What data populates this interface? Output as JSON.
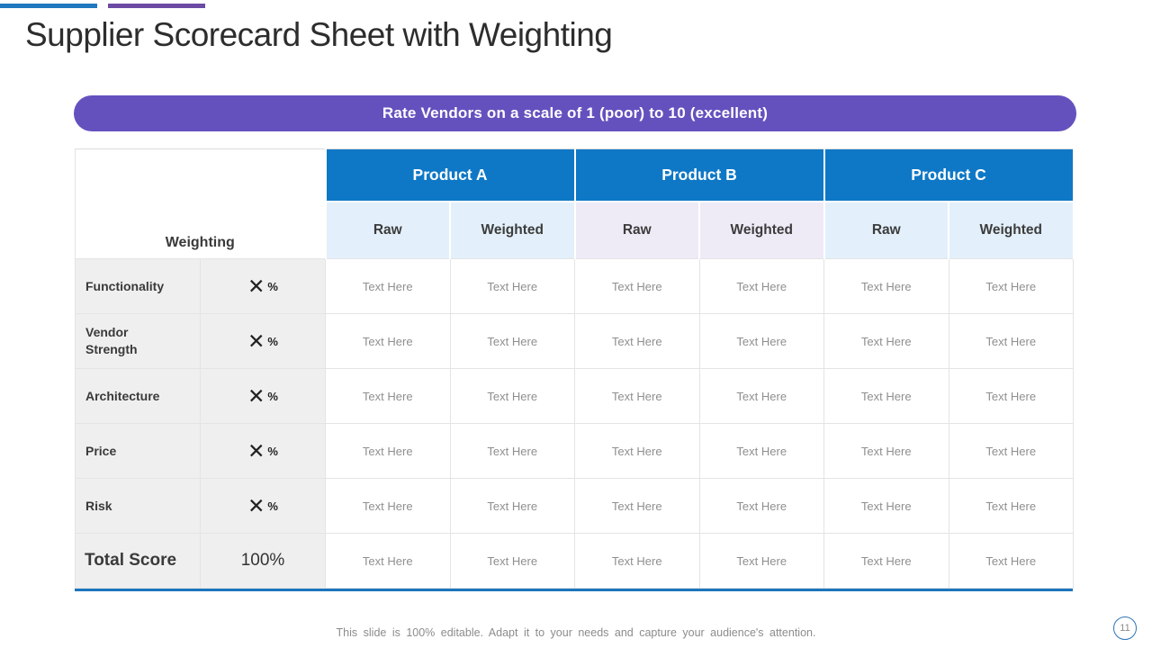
{
  "title": "Supplier Scorecard Sheet with Weighting",
  "banner": {
    "text": "Rate Vendors on a scale of 1 (poor) to 10 (excellent)"
  },
  "table": {
    "corner_label": "Weighting",
    "product_headers": [
      "Product A",
      "Product B",
      "Product C"
    ],
    "sub_headers": [
      "Raw",
      "Weighted",
      "Raw",
      "Weighted",
      "Raw",
      "Weighted"
    ],
    "rows": [
      {
        "label": "Functionality",
        "weight_symbol": "✕",
        "weight_unit": "%",
        "cells": [
          "Text Here",
          "Text Here",
          "Text Here",
          "Text Here",
          "Text Here",
          "Text Here"
        ]
      },
      {
        "label": "Vendor Strength",
        "weight_symbol": "✕",
        "weight_unit": "%",
        "cells": [
          "Text Here",
          "Text Here",
          "Text Here",
          "Text Here",
          "Text Here",
          "Text Here"
        ]
      },
      {
        "label": "Architecture",
        "weight_symbol": "✕",
        "weight_unit": "%",
        "cells": [
          "Text Here",
          "Text Here",
          "Text Here",
          "Text Here",
          "Text Here",
          "Text Here"
        ]
      },
      {
        "label": "Price",
        "weight_symbol": "✕",
        "weight_unit": "%",
        "cells": [
          "Text Here",
          "Text Here",
          "Text Here",
          "Text Here",
          "Text Here",
          "Text Here"
        ]
      },
      {
        "label": "Risk",
        "weight_symbol": "✕",
        "weight_unit": "%",
        "cells": [
          "Text Here",
          "Text Here",
          "Text Here",
          "Text Here",
          "Text Here",
          "Text Here"
        ]
      }
    ],
    "total_row": {
      "label": "Total Score",
      "weight": "100%",
      "cells": [
        "Text Here",
        "Text Here",
        "Text Here",
        "Text Here",
        "Text Here",
        "Text Here"
      ]
    }
  },
  "footer": {
    "note": "This slide is 100% editable. Adapt it to your needs and capture your audience's attention.",
    "page_number": "11"
  },
  "colors": {
    "header_blue": "#0E78C6",
    "banner_purple": "#6551BE",
    "topbar_blue": "#1E79BE",
    "topbar_purple": "#6C4BA5",
    "table_bottom_border": "#1C75BD",
    "subheader_blue_tint": "#E3F0FB",
    "subheader_purple_tint": "#EEEBF7",
    "row_label_gray": "#F0EFEF"
  }
}
